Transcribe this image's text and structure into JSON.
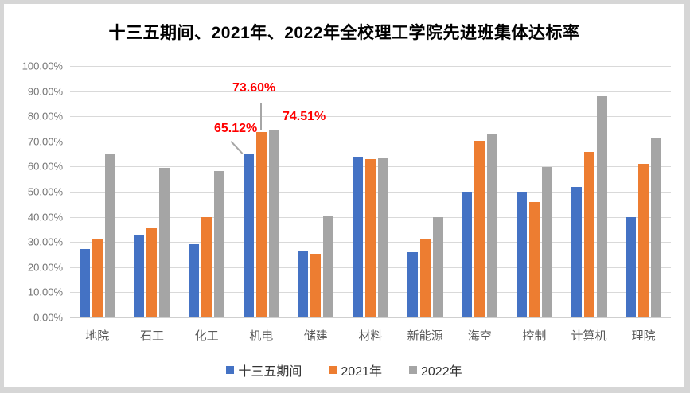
{
  "title": "十三五期间、2021年、2022年全校理工学院先进班集体达标率",
  "chart_data": {
    "type": "bar",
    "title": "十三五期间、2021年、2022年全校理工学院先进班集体达标率",
    "categories": [
      "地院",
      "石工",
      "化工",
      "机电",
      "储建",
      "材料",
      "新能源",
      "海空",
      "控制",
      "计算机",
      "理院"
    ],
    "series": [
      {
        "name": "十三五期间",
        "color": "#4472C4",
        "values": [
          27.3,
          33.0,
          29.2,
          65.12,
          26.6,
          64.0,
          26.1,
          50.0,
          50.0,
          52.0,
          40.0
        ]
      },
      {
        "name": "2021年",
        "color": "#ED7D31",
        "values": [
          31.4,
          35.7,
          40.0,
          73.6,
          25.2,
          62.9,
          31.1,
          70.3,
          45.8,
          65.8,
          61.0
        ]
      },
      {
        "name": "2022年",
        "color": "#A5A5A5",
        "values": [
          64.9,
          59.5,
          58.2,
          74.51,
          40.3,
          63.3,
          39.9,
          72.8,
          59.8,
          88.0,
          71.6
        ]
      }
    ],
    "y_ticks": [
      "100.00%",
      "90.00%",
      "80.00%",
      "70.00%",
      "60.00%",
      "50.00%",
      "40.00%",
      "30.00%",
      "20.00%",
      "10.00%",
      "0.00%"
    ],
    "ylim": [
      0,
      100
    ],
    "xlabel": "",
    "ylabel": "",
    "grid": true,
    "legend_position": "bottom",
    "annotation_color": "#FF0000",
    "annotations": [
      {
        "text": "65.12%",
        "series": "十三五期间",
        "category": "机电",
        "value": 65.12
      },
      {
        "text": "73.60%",
        "series": "2021年",
        "category": "机电",
        "value": 73.6
      },
      {
        "text": "74.51%",
        "series": "2022年",
        "category": "机电",
        "value": 74.51
      }
    ]
  }
}
